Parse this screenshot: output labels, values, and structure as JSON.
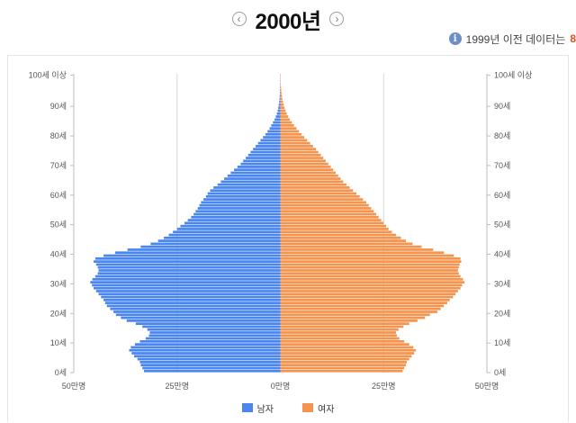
{
  "header": {
    "prev_glyph": "‹",
    "next_glyph": "›",
    "year_label": "2000년"
  },
  "notice": {
    "icon_glyph": "i",
    "text": "1999년 이전 데이터는",
    "accent_text": "8"
  },
  "colors": {
    "male": "#4a86f0",
    "female": "#f5944e",
    "grid": "#d8d8d8",
    "axis": "#bdbdbd"
  },
  "chart_data": {
    "type": "bar",
    "orientation": "horizontal",
    "layout": "population-pyramid",
    "age_axis_labels": [
      "0세",
      "10세",
      "20세",
      "30세",
      "40세",
      "50세",
      "60세",
      "70세",
      "80세",
      "90세",
      "100세 이상"
    ],
    "value_axis_labels": [
      "50만명",
      "25만명",
      "0만명",
      "25만명",
      "50만명"
    ],
    "value_axis_range": [
      -500000,
      500000
    ],
    "grid": true,
    "legend_position": "bottom",
    "series": [
      {
        "name": "남자",
        "color": "#4a86f0",
        "values": [
          330000,
          334000,
          338000,
          340000,
          346000,
          354000,
          360000,
          366000,
          362000,
          352000,
          340000,
          326000,
          318000,
          316000,
          322000,
          334000,
          350000,
          372000,
          386000,
          398000,
          404000,
          412000,
          420000,
          424000,
          428000,
          434000,
          440000,
          446000,
          452000,
          456000,
          460000,
          455000,
          448000,
          442000,
          440000,
          442000,
          446000,
          452000,
          448000,
          428000,
          400000,
          370000,
          338000,
          314000,
          296000,
          282000,
          270000,
          260000,
          250000,
          242000,
          232000,
          224000,
          216000,
          210000,
          205000,
          200000,
          196000,
          192000,
          186000,
          180000,
          176000,
          170000,
          162000,
          152000,
          144000,
          136000,
          128000,
          120000,
          112000,
          104000,
          96000,
          90000,
          84000,
          78000,
          72000,
          66000,
          60000,
          54000,
          48000,
          42000,
          36000,
          31000,
          26000,
          22000,
          18000,
          14000,
          11000,
          8500,
          6500,
          5000,
          3800,
          2800,
          2000,
          1400,
          1000,
          700,
          500,
          340,
          230,
          160,
          250
        ]
      },
      {
        "name": "여자",
        "color": "#f5944e",
        "values": [
          296000,
          300000,
          304000,
          306000,
          312000,
          318000,
          324000,
          328000,
          322000,
          312000,
          300000,
          288000,
          282000,
          280000,
          286000,
          298000,
          312000,
          332000,
          350000,
          362000,
          380000,
          388000,
          396000,
          404000,
          410000,
          418000,
          424000,
          430000,
          436000,
          440000,
          446000,
          442000,
          436000,
          432000,
          430000,
          432000,
          434000,
          438000,
          436000,
          420000,
          396000,
          370000,
          342000,
          320000,
          304000,
          292000,
          280000,
          270000,
          262000,
          256000,
          250000,
          244000,
          238000,
          232000,
          226000,
          220000,
          214000,
          208000,
          200000,
          192000,
          184000,
          176000,
          168000,
          160000,
          152000,
          146000,
          140000,
          134000,
          128000,
          122000,
          116000,
          110000,
          104000,
          98000,
          92000,
          86000,
          79000,
          72000,
          65000,
          58000,
          51000,
          45000,
          39000,
          33000,
          28000,
          23000,
          19000,
          15500,
          12500,
          10000,
          8000,
          6300,
          4900,
          3800,
          2900,
          2200,
          1600,
          1200,
          900,
          600,
          800
        ]
      }
    ]
  }
}
